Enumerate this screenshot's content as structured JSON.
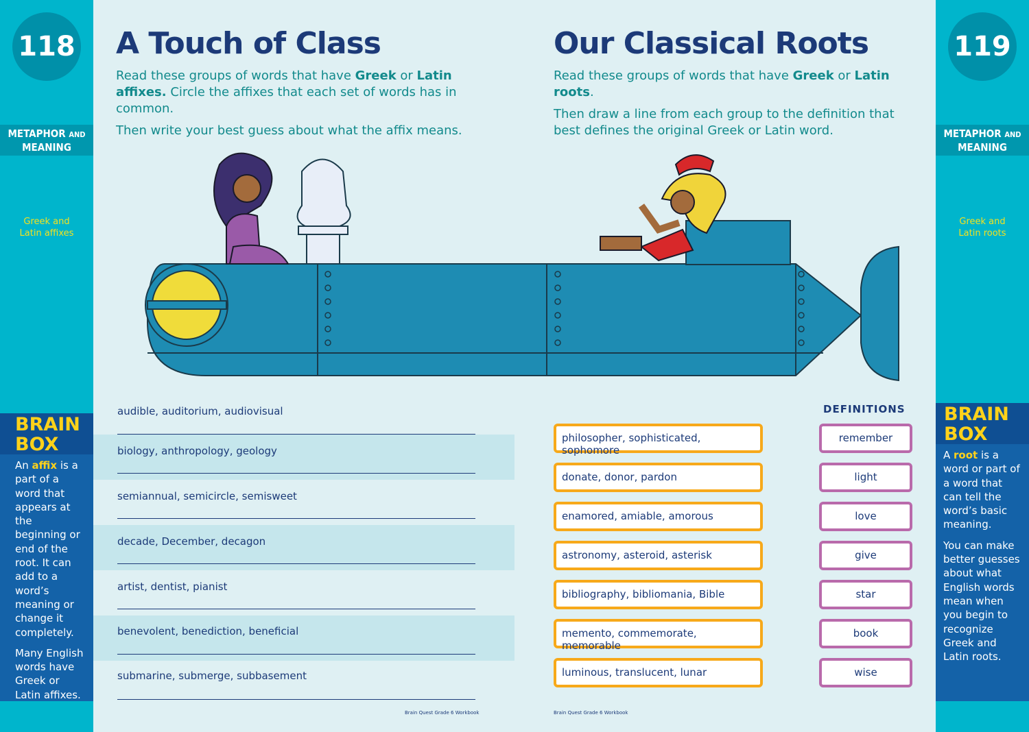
{
  "left_sidebar": {
    "page_number": "118",
    "section_line1": "METAPHOR",
    "section_and": "AND",
    "section_line2": "MEANING",
    "topic": "Greek and Latin affixes",
    "brain_box": {
      "title_line1": "BRAIN",
      "title_line2": "BOX",
      "p1_pre": "An ",
      "p1_key": "affix",
      "p1_post": " is a part of a word that appears at the beginning or end of the root. It can add to a word’s meaning or change it completely.",
      "p2": "Many English words have Greek or Latin affixes."
    }
  },
  "right_sidebar": {
    "page_number": "119",
    "section_line1": "METAPHOR",
    "section_and": "AND",
    "section_line2": "MEANING",
    "topic": "Greek and Latin roots",
    "brain_box": {
      "title_line1": "BRAIN",
      "title_line2": "BOX",
      "p1_pre": "A ",
      "p1_key": "root",
      "p1_post": " is a word or part of a word that can tell the word’s basic meaning.",
      "p2": "You can make better guesses about what English words mean when you begin to recognize Greek and Latin roots."
    }
  },
  "left_page": {
    "title": "A Touch of Class",
    "intro_a": "Read these groups of words that have ",
    "greek": "Greek",
    "or": " or ",
    "latin_affixes": "Latin affixes.",
    "intro_b": " Circle the affixes that each set of words has in common.",
    "intro2": "Then write your best guess about what the affix means.",
    "word_groups": [
      "audible, auditorium, audiovisual",
      "biology, anthropology, geology",
      "semiannual, semicircle, semisweet",
      "decade, December, decagon",
      "artist, dentist, pianist",
      "benevolent, benediction, beneficial",
      "submarine, submerge, subbasement"
    ],
    "footer": "Brain Quest Grade 6 Workbook"
  },
  "right_page": {
    "title": "Our Classical Roots",
    "intro_a": "Read these groups of words that have ",
    "greek": "Greek",
    "or": " or ",
    "latin_roots": "Latin roots",
    "intro_end": ".",
    "intro2": "Then draw a line from each group to the definition that best defines the original Greek or Latin word.",
    "definitions_heading": "DEFINITIONS",
    "groups": [
      "philosopher, sophisticated, sophomore",
      "donate, donor, pardon",
      "enamored, amiable, amorous",
      "astronomy, asteroid, asterisk",
      "bibliography, bibliomania, Bible",
      "memento, commemorate, memorable",
      "luminous, translucent, lunar"
    ],
    "definitions": [
      "remember",
      "light",
      "love",
      "give",
      "star",
      "book",
      "wise"
    ],
    "footer": "Brain Quest Grade 6 Workbook"
  },
  "colors": {
    "sidebar": "#00b5cc",
    "brain_box": "#1462a8",
    "title": "#1c3a78",
    "accent_yellow": "#ffd21a",
    "group_border": "#f7a91a",
    "definition_border": "#b96aab"
  }
}
